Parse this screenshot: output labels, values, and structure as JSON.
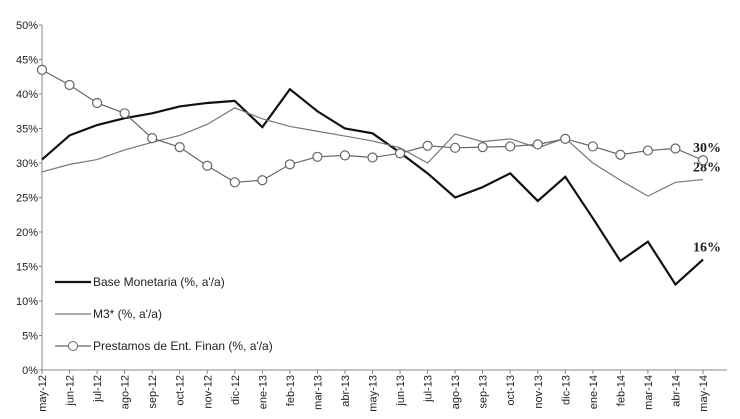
{
  "chart_data": {
    "type": "line",
    "categories": [
      "may-12",
      "jun-12",
      "jul-12",
      "ago-12",
      "sep-12",
      "oct-12",
      "nov-12",
      "dic-12",
      "ene-13",
      "feb-13",
      "mar-13",
      "abr-13",
      "may-13",
      "jun-13",
      "jul-13",
      "ago-13",
      "sep-13",
      "oct-13",
      "nov-13",
      "dic-13",
      "ene-14",
      "feb-14",
      "mar-14",
      "abr-14",
      "may-14"
    ],
    "series": [
      {
        "name": "Base Monetaria (%, a'/a)",
        "color": "#111111",
        "width": 2.2,
        "marker": "none",
        "values": [
          30.5,
          34,
          35.5,
          36.5,
          37.2,
          38.2,
          38.7,
          39,
          35.2,
          40.7,
          37.5,
          35,
          34.3,
          31.5,
          28.5,
          25,
          26.5,
          28.5,
          24.5,
          28,
          22,
          15.8,
          18.6,
          12.4,
          16
        ],
        "value_labels": [
          null,
          null,
          null,
          null,
          null,
          null,
          null,
          null,
          null,
          null,
          null,
          null,
          null,
          null,
          null,
          null,
          null,
          null,
          null,
          null,
          null,
          null,
          null,
          null,
          "16%"
        ]
      },
      {
        "name": "M3* (%, a'/a)",
        "color": "#777777",
        "width": 1.2,
        "marker": "none",
        "values": [
          28.7,
          29.8,
          30.5,
          31.9,
          33,
          34,
          35.6,
          38,
          36.4,
          35.3,
          34.6,
          33.9,
          33.2,
          32.2,
          30,
          34.2,
          33.1,
          33.5,
          32.2,
          33.6,
          30,
          27.5,
          25.2,
          27.2,
          27.6
        ],
        "value_labels": [
          null,
          null,
          null,
          null,
          null,
          null,
          null,
          null,
          null,
          null,
          null,
          null,
          null,
          null,
          null,
          null,
          null,
          null,
          null,
          null,
          null,
          null,
          null,
          null,
          "28%"
        ]
      },
      {
        "name": "Prestamos de Ent. Finan (%, a'/a)",
        "color": "#666666",
        "width": 1.2,
        "marker": "circle",
        "values": [
          43.5,
          41.3,
          38.7,
          37.2,
          33.6,
          32.3,
          29.6,
          27.2,
          27.5,
          29.8,
          30.9,
          31.1,
          30.8,
          31.4,
          32.5,
          32.2,
          32.3,
          32.4,
          32.7,
          33.5,
          32.4,
          31.2,
          31.8,
          32.1,
          30.4
        ],
        "value_labels": [
          null,
          null,
          null,
          null,
          null,
          null,
          null,
          null,
          null,
          null,
          null,
          null,
          null,
          null,
          null,
          null,
          null,
          null,
          null,
          null,
          null,
          null,
          null,
          null,
          "30%"
        ]
      }
    ],
    "ylim": [
      0,
      50
    ],
    "yticks": [
      {
        "value": 0,
        "label": "0%"
      },
      {
        "value": 5,
        "label": "5%"
      },
      {
        "value": 10,
        "label": "10%"
      },
      {
        "value": 15,
        "label": "15%"
      },
      {
        "value": 20,
        "label": "20%"
      },
      {
        "value": 25,
        "label": "25%"
      },
      {
        "value": 30,
        "label": "30%"
      },
      {
        "value": 35,
        "label": "35%"
      },
      {
        "value": 40,
        "label": "40%"
      },
      {
        "value": 45,
        "label": "45%"
      },
      {
        "value": 50,
        "label": "50%"
      }
    ],
    "grid": false,
    "legend": "lower left"
  }
}
